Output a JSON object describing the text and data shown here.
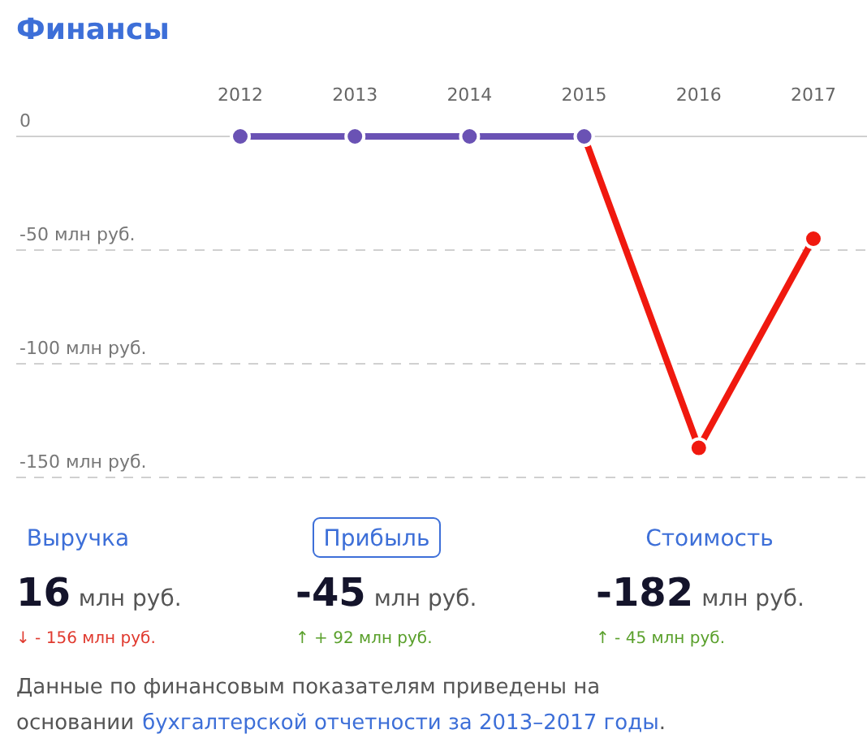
{
  "chart_data": [
    {
      "type": "line",
      "title": "Финансы",
      "categories": [
        "2012",
        "2013",
        "2014",
        "2015",
        "2016",
        "2017"
      ],
      "series": [
        {
          "color": "#6a52b4",
          "values": [
            0,
            0,
            0,
            0,
            null,
            null
          ]
        },
        {
          "color": "#f0190f",
          "values": [
            null,
            null,
            null,
            0,
            -137,
            -45
          ]
        }
      ],
      "ylim": [
        -150,
        0
      ],
      "yticks": [
        {
          "value": 0,
          "label": "0"
        },
        {
          "value": -50,
          "label": "-50 млн руб."
        },
        {
          "value": -100,
          "label": "-100 млн руб."
        },
        {
          "value": -150,
          "label": "-150 млн руб."
        }
      ],
      "grid": "y",
      "marker": "circle",
      "line_style": "solid"
    },
    {
      "type": "other",
      "annotations": [
        "Выручка",
        "16",
        "млн руб.",
        "↓ - 156 млн руб.",
        "Прибыль",
        "-45",
        "млн руб.",
        "↑ + 92 млн руб.",
        "Стоимость",
        "-182",
        "млн руб.",
        "↑ - 45 млн руб.",
        "Данные по финансовым показателям приведены на",
        "основании",
        "бухгалтерской отчетности за 2013–2017 годы",
        "."
      ]
    }
  ]
}
